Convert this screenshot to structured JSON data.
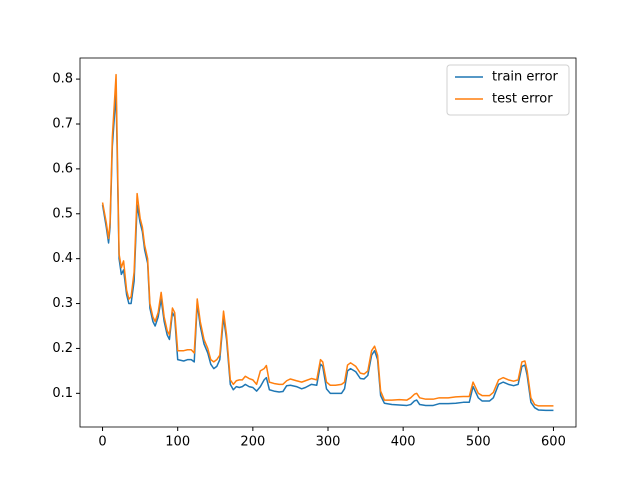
{
  "chart_data": {
    "type": "line",
    "x": [
      0,
      5,
      8,
      10,
      13,
      18,
      22,
      25,
      28,
      32,
      35,
      38,
      42,
      46,
      50,
      53,
      56,
      60,
      63,
      67,
      70,
      74,
      78,
      82,
      86,
      89,
      93,
      96,
      100,
      108,
      113,
      118,
      122,
      126,
      130,
      135,
      140,
      144,
      148,
      152,
      156,
      161,
      165,
      170,
      174,
      178,
      182,
      186,
      190,
      195,
      200,
      205,
      210,
      215,
      218,
      222,
      228,
      235,
      240,
      245,
      250,
      258,
      265,
      270,
      278,
      285,
      290,
      293,
      298,
      303,
      310,
      318,
      322,
      326,
      330,
      337,
      343,
      348,
      353,
      358,
      362,
      366,
      370,
      375,
      385,
      395,
      405,
      410,
      415,
      418,
      422,
      430,
      440,
      448,
      460,
      470,
      480,
      488,
      493,
      500,
      505,
      515,
      520,
      527,
      533,
      540,
      547,
      553,
      558,
      562,
      565,
      570,
      575,
      580,
      590,
      600
    ],
    "series": [
      {
        "name": "train error",
        "color": "#1f77b4",
        "values": [
          0.52,
          0.47,
          0.435,
          0.47,
          0.65,
          0.77,
          0.4,
          0.365,
          0.375,
          0.32,
          0.3,
          0.3,
          0.35,
          0.52,
          0.48,
          0.46,
          0.42,
          0.39,
          0.29,
          0.26,
          0.25,
          0.27,
          0.31,
          0.26,
          0.23,
          0.22,
          0.28,
          0.27,
          0.175,
          0.172,
          0.175,
          0.175,
          0.17,
          0.3,
          0.25,
          0.21,
          0.19,
          0.165,
          0.155,
          0.16,
          0.175,
          0.27,
          0.22,
          0.12,
          0.108,
          0.115,
          0.113,
          0.115,
          0.12,
          0.115,
          0.113,
          0.105,
          0.115,
          0.13,
          0.135,
          0.108,
          0.105,
          0.103,
          0.104,
          0.117,
          0.118,
          0.115,
          0.11,
          0.113,
          0.12,
          0.118,
          0.165,
          0.16,
          0.11,
          0.1,
          0.1,
          0.1,
          0.11,
          0.15,
          0.155,
          0.148,
          0.133,
          0.132,
          0.14,
          0.185,
          0.195,
          0.175,
          0.095,
          0.078,
          0.075,
          0.074,
          0.073,
          0.075,
          0.083,
          0.085,
          0.075,
          0.073,
          0.073,
          0.077,
          0.077,
          0.078,
          0.08,
          0.08,
          0.115,
          0.09,
          0.083,
          0.083,
          0.09,
          0.12,
          0.125,
          0.12,
          0.117,
          0.12,
          0.16,
          0.163,
          0.14,
          0.08,
          0.068,
          0.063,
          0.062,
          0.062
        ]
      },
      {
        "name": "test error",
        "color": "#ff7f0e",
        "values": [
          0.525,
          0.48,
          0.445,
          0.48,
          0.67,
          0.81,
          0.41,
          0.38,
          0.395,
          0.33,
          0.31,
          0.315,
          0.37,
          0.545,
          0.49,
          0.47,
          0.43,
          0.4,
          0.3,
          0.27,
          0.26,
          0.28,
          0.325,
          0.27,
          0.24,
          0.23,
          0.29,
          0.28,
          0.195,
          0.195,
          0.197,
          0.197,
          0.19,
          0.31,
          0.26,
          0.22,
          0.2,
          0.175,
          0.17,
          0.175,
          0.185,
          0.283,
          0.23,
          0.13,
          0.12,
          0.128,
          0.13,
          0.13,
          0.138,
          0.133,
          0.13,
          0.12,
          0.15,
          0.155,
          0.162,
          0.125,
          0.122,
          0.12,
          0.12,
          0.128,
          0.132,
          0.128,
          0.125,
          0.128,
          0.133,
          0.13,
          0.175,
          0.17,
          0.125,
          0.118,
          0.118,
          0.12,
          0.125,
          0.163,
          0.168,
          0.16,
          0.145,
          0.143,
          0.15,
          0.195,
          0.205,
          0.185,
          0.105,
          0.085,
          0.085,
          0.086,
          0.085,
          0.09,
          0.098,
          0.1,
          0.09,
          0.087,
          0.087,
          0.09,
          0.09,
          0.092,
          0.093,
          0.093,
          0.125,
          0.1,
          0.095,
          0.095,
          0.102,
          0.13,
          0.135,
          0.13,
          0.127,
          0.13,
          0.17,
          0.172,
          0.15,
          0.09,
          0.075,
          0.072,
          0.072,
          0.072
        ]
      }
    ],
    "xlim": [
      -30,
      630
    ],
    "ylim": [
      0.025,
      0.847
    ],
    "xticks": [
      0,
      100,
      200,
      300,
      400,
      500,
      600
    ],
    "yticks": [
      0.1,
      0.2,
      0.3,
      0.4,
      0.5,
      0.6,
      0.7,
      0.8
    ],
    "legend": "upper right"
  }
}
